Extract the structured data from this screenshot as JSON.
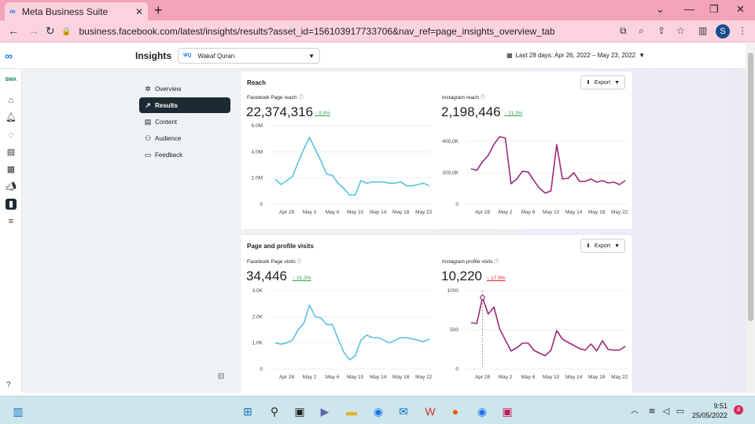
{
  "browser": {
    "tab_title": "Meta Business Suite",
    "url": "business.facebook.com/latest/insights/results?asset_id=156103917733706&nav_ref=page_insights_overview_tab",
    "profile_initial": "S"
  },
  "header": {
    "title": "Insights",
    "page_name": "Wakaf Quran",
    "date_range": "Last 28 days: Apr 26, 2022 – May 23, 2022"
  },
  "subnav": {
    "items": [
      {
        "label": "Overview",
        "icon": "overview-icon"
      },
      {
        "label": "Results",
        "icon": "results-icon"
      },
      {
        "label": "Content",
        "icon": "content-icon"
      },
      {
        "label": "Audience",
        "icon": "audience-icon"
      },
      {
        "label": "Feedback",
        "icon": "feedback-icon"
      }
    ],
    "active": "Results"
  },
  "reach": {
    "title": "Reach",
    "export_label": "Export",
    "facebook": {
      "label": "Facebook Page reach",
      "value": "22,374,316",
      "change": "9.8%",
      "direction": "up"
    },
    "instagram": {
      "label": "Instagram reach",
      "value": "2,198,446",
      "change": "21.3%",
      "direction": "up"
    }
  },
  "visits": {
    "title": "Page and profile visits",
    "export_label": "Export",
    "facebook": {
      "label": "Facebook Page visits",
      "value": "34,446",
      "change": "31.3%",
      "direction": "up"
    },
    "instagram": {
      "label": "Instagram profile visits",
      "value": "10,220",
      "change": "17.9%",
      "direction": "down"
    }
  },
  "chart_data": [
    {
      "type": "line",
      "series": [
        {
          "values": [
            1.9,
            1.5,
            1.8,
            2.1,
            3.2,
            4.2,
            5.1,
            4.2,
            3.3,
            2.3,
            2.2,
            1.6,
            1.2,
            0.7,
            0.7,
            1.8,
            1.6,
            1.7,
            1.7,
            1.7,
            1.6,
            1.6,
            1.7,
            1.4,
            1.4,
            1.5,
            1.6,
            1.4
          ]
        }
      ],
      "x_ticks": [
        "Apr 28",
        "May 2",
        "May 6",
        "May 10",
        "May 14",
        "May 18",
        "May 22"
      ],
      "y_ticks": [
        "0",
        "2.0M",
        "4.0M",
        "6.0M"
      ],
      "ylim": [
        0,
        6000000
      ],
      "color": "#5bc0de"
    },
    {
      "type": "line",
      "series": [
        {
          "values": [
            225,
            215,
            270,
            310,
            380,
            430,
            420,
            130,
            160,
            210,
            205,
            150,
            100,
            70,
            85,
            380,
            160,
            165,
            200,
            145,
            145,
            160,
            140,
            150,
            135,
            140,
            125,
            150
          ]
        }
      ],
      "x_ticks": [
        "Apr 28",
        "May 2",
        "May 6",
        "May 10",
        "May 14",
        "May 18",
        "May 22"
      ],
      "y_ticks": [
        "0",
        "200,0K",
        "400,0K"
      ],
      "ylim": [
        0,
        500000
      ],
      "color": "#9c2a7a"
    },
    {
      "type": "line",
      "series": [
        {
          "values": [
            1000,
            950,
            1000,
            1100,
            1500,
            1750,
            2450,
            2000,
            1950,
            1700,
            1700,
            1150,
            650,
            350,
            500,
            1100,
            1300,
            1200,
            1200,
            1100,
            1000,
            1100,
            1200,
            1200,
            1150,
            1100,
            1050,
            1150
          ]
        }
      ],
      "x_ticks": [
        "Apr 28",
        "May 2",
        "May 6",
        "May 10",
        "May 14",
        "May 18",
        "May 22"
      ],
      "y_ticks": [
        "0",
        "1.0K",
        "2.0K",
        "3.0K"
      ],
      "ylim": [
        0,
        3000
      ],
      "color": "#5bc0de"
    },
    {
      "type": "line",
      "series": [
        {
          "values": [
            590,
            580,
            910,
            700,
            790,
            510,
            370,
            230,
            270,
            330,
            330,
            240,
            200,
            170,
            240,
            490,
            380,
            340,
            300,
            260,
            240,
            320,
            230,
            360,
            250,
            240,
            240,
            290
          ]
        }
      ],
      "x_ticks": [
        "Apr 28",
        "May 2",
        "May 6",
        "May 10",
        "May 14",
        "May 18",
        "May 22"
      ],
      "y_ticks": [
        "0",
        "500",
        "1000"
      ],
      "ylim": [
        0,
        1000
      ],
      "highlight_index": 2,
      "color": "#9c2a7a"
    }
  ],
  "taskbar": {
    "time": "9:51",
    "date": "25/05/2022",
    "notifications": "4"
  }
}
